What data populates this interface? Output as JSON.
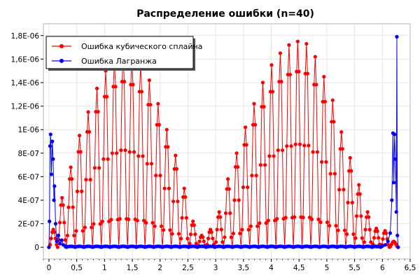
{
  "window": {
    "title": "Распределение ошибки (n=40)"
  },
  "colors": {
    "spline": "#ff0000",
    "lagrange": "#0000ff",
    "grid": "#e6e6e6",
    "axis": "#000000",
    "frame": "#b4b4b4"
  },
  "chart_data": {
    "type": "line",
    "title": "Распределение ошибки (n=40)",
    "xlabel": "",
    "ylabel": "",
    "xlim": [
      -0.1,
      6.5
    ],
    "ylim": [
      -1e-07,
      1.9e-06
    ],
    "grid": true,
    "legend_position": "top-left",
    "x_ticks": [
      0,
      0.5,
      1,
      1.5,
      2,
      2.5,
      3,
      3.5,
      4,
      4.5,
      5,
      5.5,
      6,
      6.5
    ],
    "x_tick_labels": [
      "0",
      "0,5",
      "1",
      "1,5",
      "2",
      "2,5",
      "3",
      "3,5",
      "4",
      "4,5",
      "5",
      "5,5",
      "6",
      "6,5"
    ],
    "y_ticks": [
      0,
      2e-07,
      4e-07,
      6e-07,
      8e-07,
      1e-06,
      1.2e-06,
      1.4e-06,
      1.6e-06,
      1.8e-06
    ],
    "y_tick_labels": [
      "0",
      "2E-07",
      "4E-07",
      "6E-07",
      "8E-07",
      "1E-06",
      "1,2E-06",
      "1,4E-06",
      "1,6E-06",
      "1,8E-06"
    ],
    "series": [
      {
        "name": "Ошибка кубического сплайна",
        "color": "#ff0000",
        "knots": [
          0,
          0.157,
          0.314,
          0.471,
          0.628,
          0.785,
          0.942,
          1.1,
          1.257,
          1.414,
          1.571,
          1.728,
          1.885,
          2.042,
          2.199,
          2.356,
          2.513,
          2.67,
          2.827,
          2.985,
          3.142,
          3.299,
          3.456,
          3.613,
          3.77,
          3.927,
          4.084,
          4.241,
          4.398,
          4.555,
          4.712,
          4.869,
          5.027,
          5.184,
          5.341,
          5.498,
          5.655,
          5.812,
          5.969,
          6.126,
          6.283
        ],
        "segment_peaks": [
          1.5e-07,
          4.2e-07,
          6.8e-07,
          9.5e-07,
          1.15e-06,
          1.35e-06,
          1.5e-06,
          1.6e-06,
          1.65e-06,
          1.62e-06,
          1.55e-06,
          1.42e-06,
          1.22e-06,
          1e-06,
          7.8e-07,
          5e-07,
          2.2e-07,
          1e-07,
          1.5e-07,
          3e-07,
          5.8e-07,
          8e-07,
          1.02e-06,
          1.22e-06,
          1.4e-06,
          1.55e-06,
          1.65e-06,
          1.72e-06,
          1.75e-06,
          1.73e-06,
          1.62e-06,
          1.45e-06,
          1.25e-06,
          9.8e-07,
          7.6e-07,
          5.3e-07,
          3e-07,
          1.6e-07,
          1.4e-07,
          5e-08
        ]
      },
      {
        "name": "Ошибка Лагранжа",
        "color": "#0000ff",
        "points": [
          [
            0,
            0.0
          ],
          [
            0.01,
            2.2e-07
          ],
          [
            0.02,
            8.6e-07
          ],
          [
            0.03,
            9.6e-07
          ],
          [
            0.045,
            6.2e-07
          ],
          [
            0.06,
            9e-07
          ],
          [
            0.075,
            7.5e-07
          ],
          [
            0.09,
            4e-07
          ],
          [
            0.1,
            5.2e-07
          ],
          [
            0.12,
            2e-07
          ],
          [
            0.14,
            5e-08
          ],
          [
            0.17,
            1e-07
          ],
          [
            0.2,
            3e-08
          ],
          [
            0.23,
            6e-08
          ],
          [
            0.26,
            2e-08
          ],
          [
            0.3,
            1e-08
          ],
          [
            0.4,
            0.0
          ],
          [
            0.6,
            0.0
          ],
          [
            1.0,
            0.0
          ],
          [
            2.0,
            0.0
          ],
          [
            3.0,
            0.0
          ],
          [
            4.0,
            0.0
          ],
          [
            5.0,
            0.0
          ],
          [
            5.6,
            0.0
          ],
          [
            5.9,
            5e-09
          ],
          [
            6.0,
            1e-08
          ],
          [
            6.05,
            2e-08
          ],
          [
            6.1,
            5e-08
          ],
          [
            6.14,
            1.2e-07
          ],
          [
            6.17,
            4e-07
          ],
          [
            6.19,
            9.7e-07
          ],
          [
            6.205,
            5.5e-07
          ],
          [
            6.22,
            9.6e-07
          ],
          [
            6.235,
            7.5e-07
          ],
          [
            6.25,
            3e-07
          ],
          [
            6.26,
            1.79e-06
          ],
          [
            6.27,
            1e-07
          ],
          [
            6.283,
            0.0
          ]
        ]
      }
    ]
  }
}
